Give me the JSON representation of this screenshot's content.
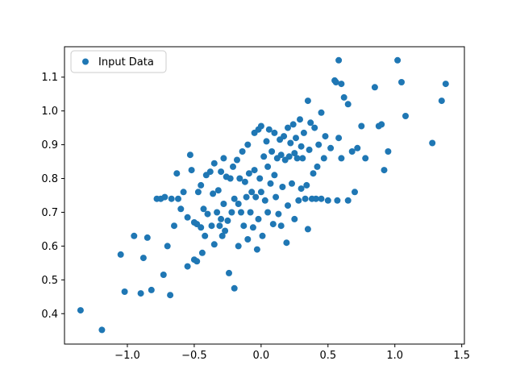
{
  "figure": {
    "background": "#ffffff"
  },
  "chart_data": {
    "type": "scatter",
    "title": "",
    "xlabel": "",
    "ylabel": "",
    "grid": false,
    "legend": {
      "label": "Input Data",
      "position": "upper left"
    },
    "marker_color": "#1f77b4",
    "xlim": [
      -1.47,
      1.52
    ],
    "ylim": [
      0.31,
      1.19
    ],
    "xticks": {
      "values": [
        -1.0,
        -0.5,
        0.0,
        0.5,
        1.0,
        1.5
      ],
      "labels": [
        "−1.0",
        "−0.5",
        "0.0",
        "0.5",
        "1.0",
        "1.5"
      ]
    },
    "yticks": {
      "values": [
        0.4,
        0.5,
        0.6,
        0.7,
        0.8,
        0.9,
        1.0,
        1.1
      ],
      "labels": [
        "0.4",
        "0.5",
        "0.6",
        "0.7",
        "0.8",
        "0.9",
        "1.0",
        "1.1"
      ]
    },
    "series": [
      {
        "name": "Input Data",
        "points": [
          [
            -1.35,
            0.41
          ],
          [
            -1.19,
            0.352
          ],
          [
            -1.05,
            0.575
          ],
          [
            -1.02,
            0.465
          ],
          [
            -0.95,
            0.63
          ],
          [
            -0.9,
            0.46
          ],
          [
            -0.88,
            0.565
          ],
          [
            -0.85,
            0.625
          ],
          [
            -0.82,
            0.47
          ],
          [
            -0.78,
            0.74
          ],
          [
            -0.75,
            0.74
          ],
          [
            -0.73,
            0.515
          ],
          [
            -0.72,
            0.745
          ],
          [
            -0.7,
            0.6
          ],
          [
            -0.68,
            0.455
          ],
          [
            -0.67,
            0.74
          ],
          [
            -0.65,
            0.66
          ],
          [
            -0.63,
            0.815
          ],
          [
            -0.62,
            0.74
          ],
          [
            -0.6,
            0.71
          ],
          [
            -0.58,
            0.76
          ],
          [
            -0.55,
            0.685
          ],
          [
            -0.55,
            0.54
          ],
          [
            -0.53,
            0.87
          ],
          [
            -0.52,
            0.825
          ],
          [
            -0.5,
            0.67
          ],
          [
            -0.5,
            0.56
          ],
          [
            -0.48,
            0.665
          ],
          [
            -0.48,
            0.555
          ],
          [
            -0.47,
            0.76
          ],
          [
            -0.45,
            0.78
          ],
          [
            -0.45,
            0.655
          ],
          [
            -0.44,
            0.58
          ],
          [
            -0.43,
            0.71
          ],
          [
            -0.42,
            0.63
          ],
          [
            -0.41,
            0.81
          ],
          [
            -0.4,
            0.695
          ],
          [
            -0.38,
            0.82
          ],
          [
            -0.37,
            0.66
          ],
          [
            -0.36,
            0.755
          ],
          [
            -0.35,
            0.845
          ],
          [
            -0.35,
            0.605
          ],
          [
            -0.33,
            0.7
          ],
          [
            -0.32,
            0.765
          ],
          [
            -0.31,
            0.66
          ],
          [
            -0.3,
            0.82
          ],
          [
            -0.3,
            0.68
          ],
          [
            -0.29,
            0.63
          ],
          [
            -0.28,
            0.86
          ],
          [
            -0.28,
            0.725
          ],
          [
            -0.27,
            0.645
          ],
          [
            -0.26,
            0.805
          ],
          [
            -0.25,
            0.675
          ],
          [
            -0.24,
            0.52
          ],
          [
            -0.23,
            0.8
          ],
          [
            -0.22,
            0.7
          ],
          [
            -0.21,
            0.835
          ],
          [
            -0.2,
            0.74
          ],
          [
            -0.2,
            0.475
          ],
          [
            -0.18,
            0.855
          ],
          [
            -0.17,
            0.725
          ],
          [
            -0.17,
            0.6
          ],
          [
            -0.16,
            0.8
          ],
          [
            -0.15,
            0.7
          ],
          [
            -0.14,
            0.88
          ],
          [
            -0.13,
            0.66
          ],
          [
            -0.12,
            0.79
          ],
          [
            -0.11,
            0.745
          ],
          [
            -0.1,
            0.9
          ],
          [
            -0.1,
            0.62
          ],
          [
            -0.09,
            0.815
          ],
          [
            -0.08,
            0.7
          ],
          [
            -0.07,
            0.76
          ],
          [
            -0.06,
            0.655
          ],
          [
            -0.05,
            0.935
          ],
          [
            -0.05,
            0.825
          ],
          [
            -0.04,
            0.745
          ],
          [
            -0.03,
            0.59
          ],
          [
            -0.02,
            0.945
          ],
          [
            -0.02,
            0.68
          ],
          [
            -0.01,
            0.8
          ],
          [
            0.0,
            0.955
          ],
          [
            0.0,
            0.76
          ],
          [
            0.01,
            0.63
          ],
          [
            0.02,
            0.865
          ],
          [
            0.03,
            0.735
          ],
          [
            0.04,
            0.91
          ],
          [
            0.05,
            0.835
          ],
          [
            0.05,
            0.7
          ],
          [
            0.06,
            0.945
          ],
          [
            0.07,
            0.785
          ],
          [
            0.08,
            0.88
          ],
          [
            0.09,
            0.665
          ],
          [
            0.1,
            0.935
          ],
          [
            0.1,
            0.81
          ],
          [
            0.11,
            0.745
          ],
          [
            0.12,
            0.86
          ],
          [
            0.13,
            0.695
          ],
          [
            0.14,
            0.915
          ],
          [
            0.15,
            0.87
          ],
          [
            0.15,
            0.66
          ],
          [
            0.16,
            0.775
          ],
          [
            0.17,
            0.925
          ],
          [
            0.18,
            0.855
          ],
          [
            0.19,
            0.61
          ],
          [
            0.2,
            0.95
          ],
          [
            0.2,
            0.72
          ],
          [
            0.21,
            0.865
          ],
          [
            0.22,
            0.905
          ],
          [
            0.23,
            0.785
          ],
          [
            0.24,
            0.96
          ],
          [
            0.25,
            0.875
          ],
          [
            0.25,
            0.68
          ],
          [
            0.26,
            0.92
          ],
          [
            0.27,
            0.86
          ],
          [
            0.28,
            0.735
          ],
          [
            0.29,
            0.975
          ],
          [
            0.3,
            0.895
          ],
          [
            0.3,
            0.77
          ],
          [
            0.31,
            0.86
          ],
          [
            0.32,
            0.935
          ],
          [
            0.33,
            0.74
          ],
          [
            0.34,
            0.78
          ],
          [
            0.35,
            1.03
          ],
          [
            0.35,
            0.65
          ],
          [
            0.36,
            0.885
          ],
          [
            0.37,
            0.965
          ],
          [
            0.38,
            0.74
          ],
          [
            0.39,
            0.815
          ],
          [
            0.4,
            0.95
          ],
          [
            0.41,
            0.74
          ],
          [
            0.42,
            0.835
          ],
          [
            0.43,
            0.9
          ],
          [
            0.45,
            0.995
          ],
          [
            0.45,
            0.74
          ],
          [
            0.47,
            0.86
          ],
          [
            0.48,
            0.925
          ],
          [
            0.5,
            0.735
          ],
          [
            0.52,
            0.89
          ],
          [
            0.55,
            1.09
          ],
          [
            0.56,
            1.085
          ],
          [
            0.57,
            0.735
          ],
          [
            0.58,
            1.15
          ],
          [
            0.58,
            0.92
          ],
          [
            0.6,
            1.08
          ],
          [
            0.6,
            0.86
          ],
          [
            0.62,
            1.04
          ],
          [
            0.65,
            1.02
          ],
          [
            0.65,
            0.735
          ],
          [
            0.68,
            0.88
          ],
          [
            0.7,
            0.76
          ],
          [
            0.72,
            0.89
          ],
          [
            0.75,
            0.955
          ],
          [
            0.78,
            0.86
          ],
          [
            0.85,
            1.07
          ],
          [
            0.88,
            0.955
          ],
          [
            0.9,
            0.96
          ],
          [
            0.92,
            0.825
          ],
          [
            0.95,
            0.88
          ],
          [
            1.02,
            1.15
          ],
          [
            1.05,
            1.085
          ],
          [
            1.08,
            0.985
          ],
          [
            1.28,
            0.905
          ],
          [
            1.35,
            1.03
          ],
          [
            1.38,
            1.08
          ]
        ]
      }
    ]
  }
}
